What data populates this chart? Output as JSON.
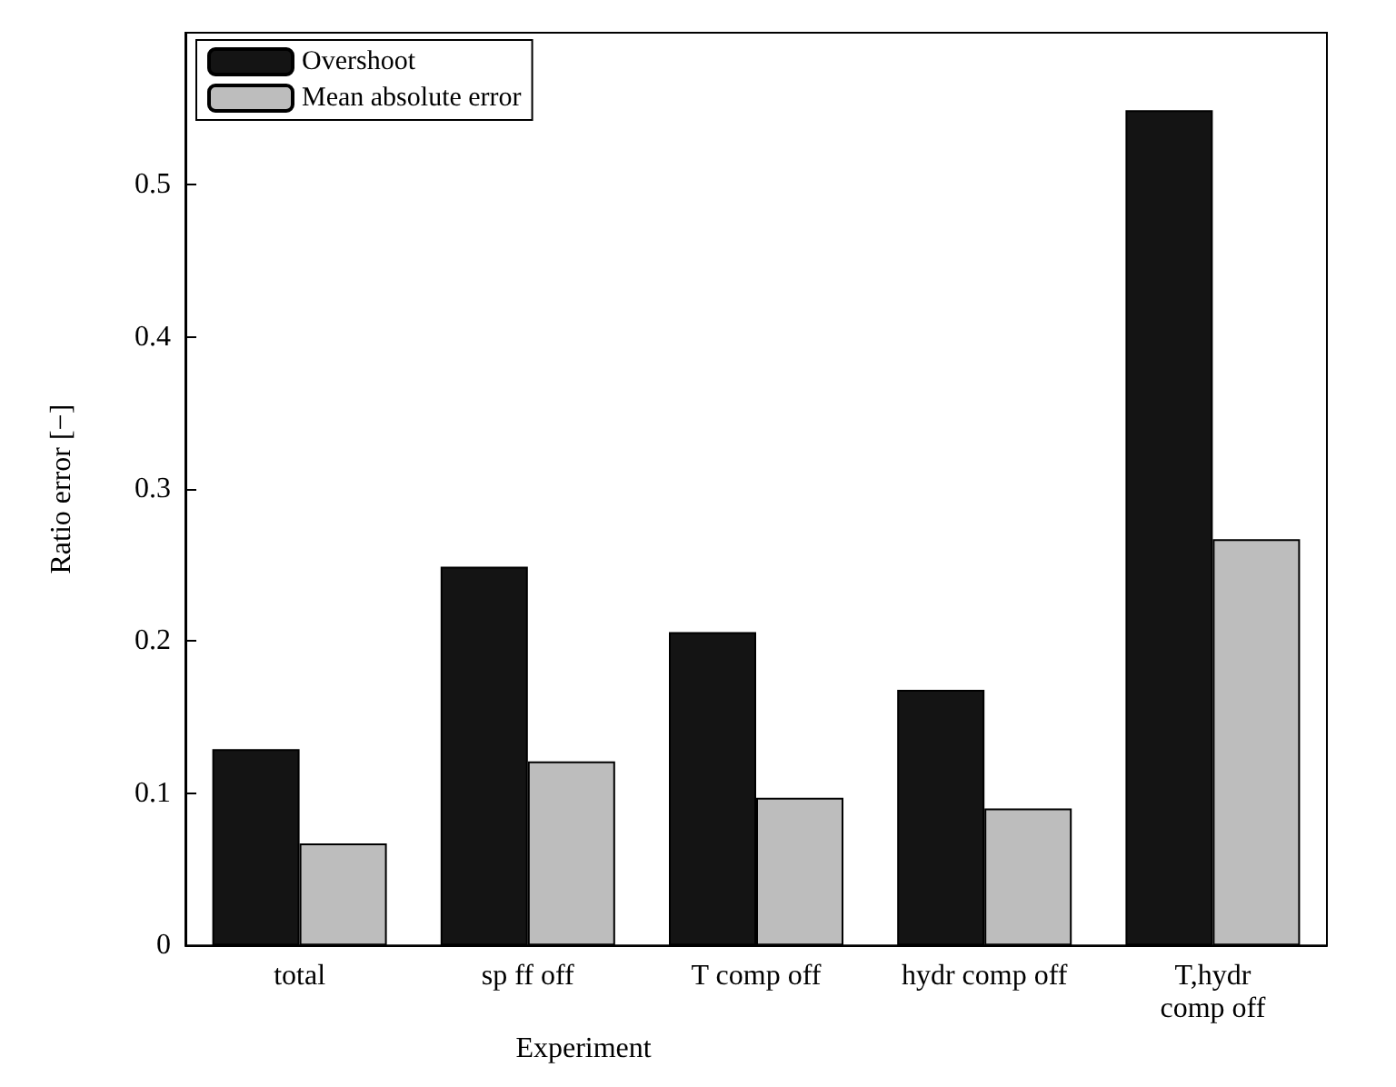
{
  "chart_data": {
    "type": "bar",
    "xlabel": "Experiment",
    "ylabel": "Ratio error [−]",
    "categories": [
      "total",
      "sp ff off",
      "T comp off",
      "hydr comp off",
      "T,hydr\ncomp off"
    ],
    "series": [
      {
        "name": "Overshoot",
        "color": "#141414",
        "values": [
          0.129,
          0.249,
          0.206,
          0.168,
          0.549
        ]
      },
      {
        "name": "Mean absolute error",
        "color": "#bdbdbd",
        "values": [
          0.067,
          0.121,
          0.097,
          0.09,
          0.267
        ]
      }
    ],
    "ylim": [
      0,
      0.6
    ],
    "yticks": [
      0,
      0.1,
      0.2,
      0.3,
      0.4,
      0.5
    ],
    "grid": false,
    "legend": "top left"
  }
}
